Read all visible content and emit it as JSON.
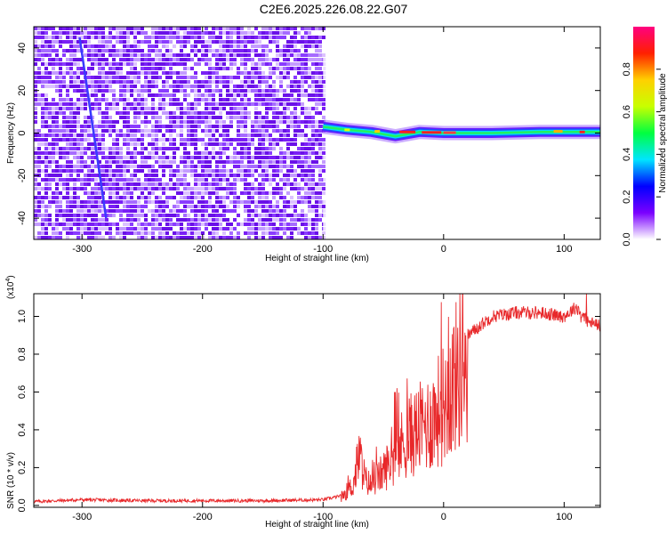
{
  "page": {
    "title": "C2E6.2025.226.08.22.G07"
  },
  "chart_data": [
    {
      "type": "heatmap",
      "xlabel": "Height of straight line (km)",
      "ylabel": "Frequency (Hz)",
      "xlim": [
        -340,
        130
      ],
      "ylim": [
        -50,
        50
      ],
      "xticks": [
        -300,
        -200,
        -100,
        0,
        100
      ],
      "yticks": [
        -40,
        -20,
        0,
        20,
        40
      ],
      "colorbar": {
        "label": "Normalized spectral amplitude",
        "range": [
          0,
          1
        ],
        "ticks": [
          "0.0",
          "0.2",
          "0.4",
          "0.6",
          "0.8"
        ],
        "colors": [
          "#ffffff",
          "#7a00ff",
          "#0000ff",
          "#00e5ff",
          "#00ff40",
          "#c8ff00",
          "#ffd000",
          "#ff2000",
          "#ff0080"
        ]
      },
      "noise_region": {
        "x_range": [
          -340,
          -100
        ],
        "freq_range": [
          -50,
          50
        ]
      },
      "signal_track": [
        {
          "x": -100,
          "freq": 3.0
        },
        {
          "x": -80,
          "freq": 1.5
        },
        {
          "x": -60,
          "freq": 0.5
        },
        {
          "x": -40,
          "freq": -1.5
        },
        {
          "x": -20,
          "freq": 0.5
        },
        {
          "x": 0,
          "freq": 0.0
        },
        {
          "x": 40,
          "freq": 0.0
        },
        {
          "x": 80,
          "freq": 0.5
        },
        {
          "x": 130,
          "freq": 0.5
        }
      ],
      "streak": [
        {
          "x": -302,
          "freq": 45
        },
        {
          "x": -280,
          "freq": -40
        }
      ]
    },
    {
      "type": "line",
      "xlabel": "Height of straight line (km)",
      "ylabel": "SNR (10 * v/v)",
      "y_multiplier": "(x10",
      "y_multiplier_exp": "4",
      "y_multiplier_close": ")",
      "xlim": [
        -340,
        130
      ],
      "ylim": [
        -0.01,
        1.12
      ],
      "xticks": [
        -300,
        -200,
        -100,
        0,
        100
      ],
      "yticks": [
        "0.0",
        "0.2",
        "0.4",
        "0.6",
        "0.8",
        "1.0"
      ],
      "series": [
        {
          "color": "#e8282a",
          "x": [
            -340,
            -300,
            -250,
            -200,
            -150,
            -100,
            -85,
            -75,
            -70,
            -65,
            -60,
            -50,
            -40,
            -30,
            -20,
            -10,
            0,
            10,
            20,
            40,
            60,
            80,
            100,
            110,
            120,
            130
          ],
          "y": [
            0.02,
            0.03,
            0.025,
            0.025,
            0.025,
            0.03,
            0.05,
            0.12,
            0.3,
            0.15,
            0.12,
            0.2,
            0.3,
            0.4,
            0.45,
            0.5,
            0.6,
            0.75,
            0.9,
            1.0,
            1.02,
            1.02,
            1.0,
            1.05,
            0.97,
            0.95
          ]
        }
      ]
    }
  ]
}
